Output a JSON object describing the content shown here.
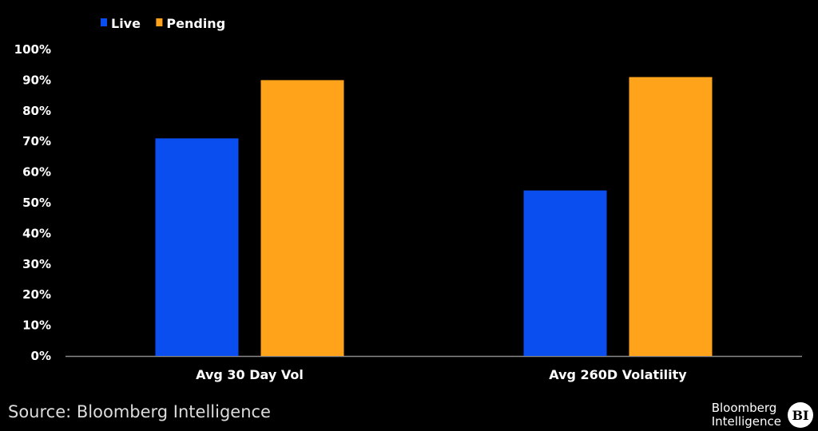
{
  "chart_data": {
    "type": "bar",
    "title": "",
    "xlabel": "",
    "ylabel": "",
    "categories": [
      "Avg 30 Day Vol",
      "Avg 260D Volatility"
    ],
    "series": [
      {
        "name": "Live",
        "values": [
          71,
          54
        ],
        "color": "#0a4ef0"
      },
      {
        "name": "Pending",
        "values": [
          90,
          91
        ],
        "color": "#ffa31a"
      }
    ],
    "ylim": [
      0,
      100
    ],
    "y_ticks": [
      0,
      10,
      20,
      30,
      40,
      50,
      60,
      70,
      80,
      90,
      100
    ],
    "y_tick_format": "percent",
    "grid": false,
    "legend_placement": "top-left",
    "background": "#000000",
    "text_color": "#ffffff"
  },
  "footer": {
    "source": "Source: Bloomberg Intelligence",
    "brand_line1": "Bloomberg",
    "brand_line2": "Intelligence",
    "brand_badge": "BI"
  }
}
